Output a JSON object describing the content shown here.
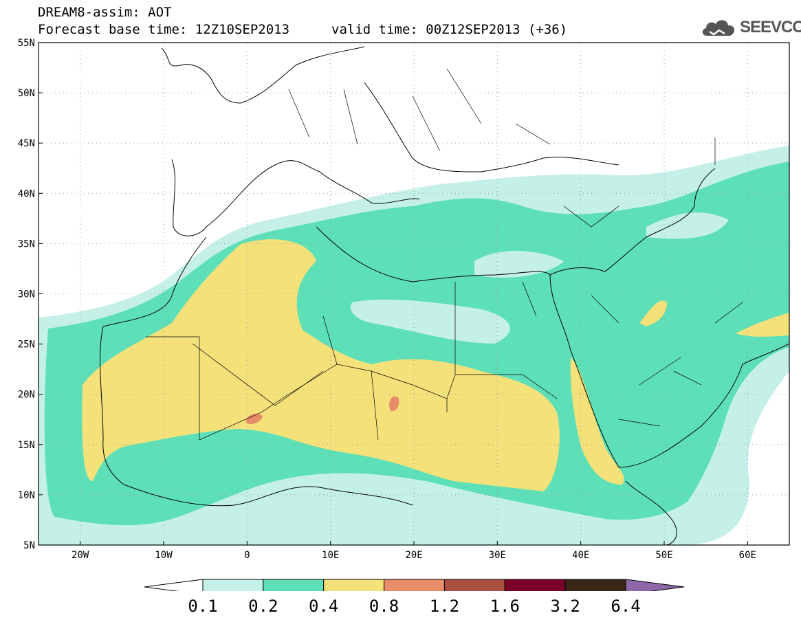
{
  "header": {
    "line1": "DREAM8-assim: AOT",
    "base_time": "Forecast base time: 12Z10SEP2013",
    "valid_time": "valid time: 00Z12SEP2013 (+36)"
  },
  "logo": {
    "text": "SEEVCCC",
    "icon": "cloud-icon"
  },
  "map": {
    "lon_labels": [
      "20W",
      "10W",
      "0",
      "10E",
      "20E",
      "30E",
      "40E",
      "50E",
      "60E"
    ],
    "lat_labels": [
      "55N",
      "50N",
      "45N",
      "40N",
      "35N",
      "30N",
      "25N",
      "20N",
      "15N",
      "10N",
      "5N"
    ],
    "lon_range": [
      -25,
      65
    ],
    "lat_range": [
      5,
      55
    ],
    "grid": "dotted"
  },
  "colorbar": {
    "levels": [
      "0.1",
      "0.2",
      "0.4",
      "0.8",
      "1.2",
      "1.6",
      "3.2",
      "6.4"
    ],
    "colors": [
      "#ffffff",
      "#c4f0e8",
      "#5ddfb8",
      "#f4e17a",
      "#e98c6a",
      "#aa4e3e",
      "#7a0028",
      "#3a2616",
      "#8e67a8"
    ]
  }
}
